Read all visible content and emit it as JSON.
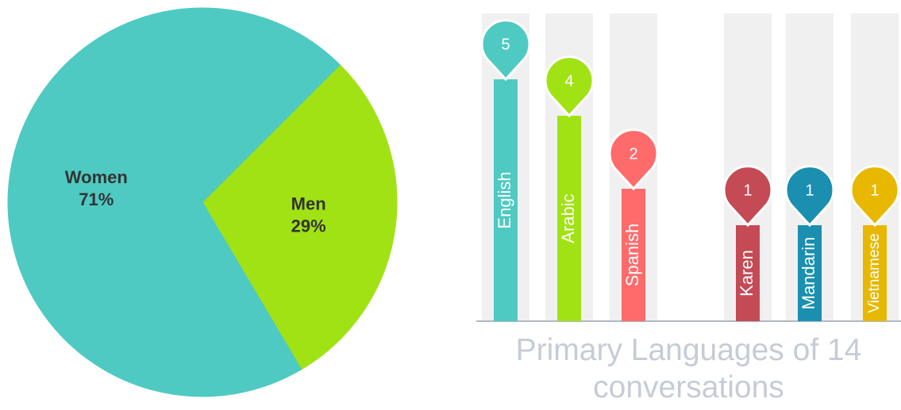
{
  "chart_data": [
    {
      "type": "pie",
      "categories": [
        "Women",
        "Men"
      ],
      "values": [
        71,
        29
      ],
      "value_labels": [
        "71%",
        "29%"
      ],
      "colors": [
        "#4ecac2",
        "#a1e214"
      ]
    },
    {
      "type": "pin",
      "title": "Primary Languages of 14 conversations",
      "categories": [
        "English",
        "Arabic",
        "Spanish",
        "Karen",
        "Mandarin",
        "Vietnamese"
      ],
      "values": [
        5,
        4,
        2,
        1,
        1,
        1
      ],
      "colors": [
        "#4ecac2",
        "#a1e214",
        "#ff6b6b",
        "#c44a55",
        "#1a8fb0",
        "#e8b800"
      ]
    }
  ]
}
